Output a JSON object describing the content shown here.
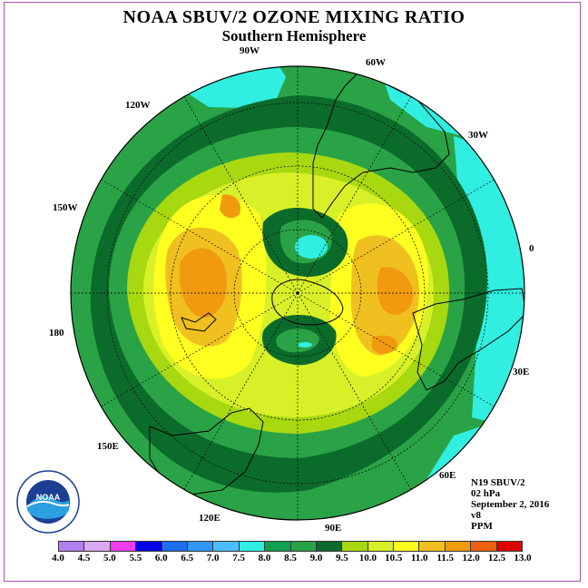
{
  "header": {
    "title": "NOAA SBUV/2 OZONE MIXING RATIO",
    "subtitle": "Southern Hemisphere"
  },
  "map": {
    "projection": "south-polar-stereographic",
    "longitude_labels": [
      "90W",
      "60W",
      "30W",
      "0",
      "30E",
      "60E",
      "90E",
      "120E",
      "150E",
      "180",
      "150W",
      "120W"
    ],
    "contour_levels_ppm": [
      8.0,
      8.5,
      9.0,
      9.5,
      10.0,
      10.5,
      11.0,
      11.5
    ],
    "regions": {
      "outer_ring": "8.0-8.5",
      "mid_latitude_band": "9.0-10.5",
      "pacific_maximum": "11.0-11.5",
      "indian_ocean_maximum": "11.0-11.5",
      "polar_minimum": "7.5-8.5"
    }
  },
  "info": {
    "satellite": "N19 SBUV/2",
    "level": "02 hPa",
    "date": "September 2, 2016",
    "version": "v8",
    "units": "PPM"
  },
  "colorbar": {
    "ticks": [
      "4.0",
      "4.5",
      "5.0",
      "5.5",
      "6.0",
      "6.5",
      "7.0",
      "7.5",
      "8.0",
      "8.5",
      "9.0",
      "9.5",
      "10.0",
      "10.5",
      "11.0",
      "11.5",
      "12.0",
      "12.5",
      "13.0"
    ],
    "colors": [
      "#b27ff0",
      "#d8a8f0",
      "#ee3cee",
      "#0000e6",
      "#1e6ef0",
      "#3296ff",
      "#4cbeff",
      "#30eee0",
      "#10a050",
      "#2aa346",
      "#0b6b2b",
      "#a8d810",
      "#d8f028",
      "#ffff20",
      "#f0c020",
      "#f09a10",
      "#f06010",
      "#e00000",
      "#8b5a2b"
    ]
  },
  "logo": {
    "text": "NOAA",
    "ring_text": "NATIONAL OCEANIC AND ATMOSPHERIC ADMINISTRATION · U.S. DEPARTMENT OF COMMERCE"
  }
}
